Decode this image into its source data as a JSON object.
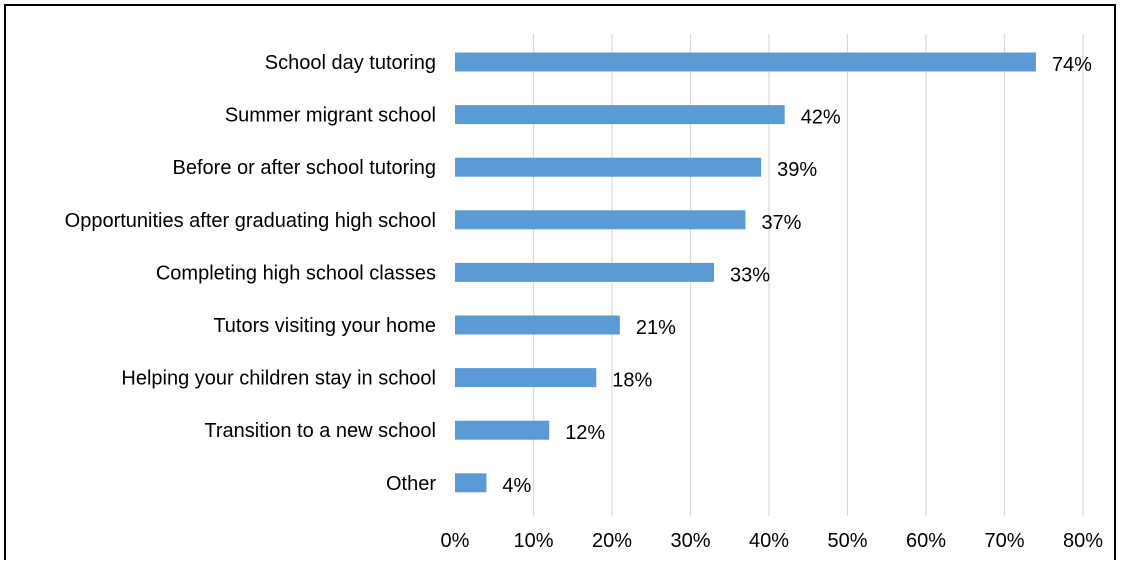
{
  "chart_data": {
    "type": "bar",
    "orientation": "horizontal",
    "categories": [
      "School day tutoring",
      "Summer migrant school",
      "Before or after school tutoring",
      "Opportunities after graduating high school",
      "Completing high school classes",
      "Tutors visiting your home",
      "Helping your children stay in school",
      "Transition to a new school",
      "Other"
    ],
    "values": [
      74,
      42,
      39,
      37,
      33,
      21,
      18,
      12,
      4
    ],
    "value_labels": [
      "74%",
      "42%",
      "39%",
      "37%",
      "33%",
      "21%",
      "18%",
      "12%",
      "4%"
    ],
    "x_ticks": [
      0,
      10,
      20,
      30,
      40,
      50,
      60,
      70,
      80
    ],
    "x_tick_labels": [
      "0%",
      "10%",
      "20%",
      "30%",
      "40%",
      "50%",
      "60%",
      "70%",
      "80%"
    ],
    "xlim": [
      0,
      80
    ],
    "unit": "%",
    "grid": "vertical",
    "legend": "none",
    "bar_color": "#5b9bd5",
    "grid_color": "#d9d9d9"
  }
}
